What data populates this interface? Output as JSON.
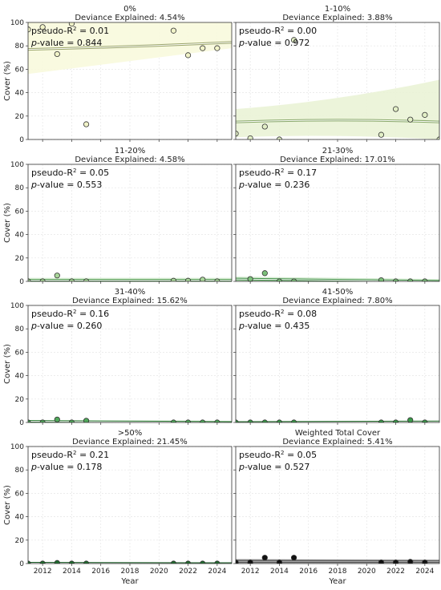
{
  "figure": {
    "ylabel": "Cover (%)",
    "xlabel": "Year"
  },
  "chart_data": [
    {
      "type": "scatter",
      "title": "0%",
      "subtitle": "Deviance Explained: 4.54%",
      "pseudo_r2_label": "pseudo-R",
      "pseudo_r2_sup": "2",
      "pseudo_r2_value": "= 0.01",
      "pvalue_label": "p",
      "pvalue_value": "-value = 0.844",
      "x": [
        2011,
        2012,
        2013,
        2014,
        2015,
        2021,
        2022,
        2023,
        2024
      ],
      "y": [
        94,
        96,
        73,
        99,
        13,
        93,
        72,
        78,
        78
      ],
      "fit_start": 77,
      "fit_end": 83,
      "band_low_start": 56,
      "band_low_end": 78,
      "band_high_start": 100,
      "band_high_end": 100,
      "point_fill": "#f1f3c8",
      "band_fill": "#f8f9dd",
      "fit_color": "#9aa46a",
      "xlim": [
        2011,
        2025
      ],
      "ylim": [
        0,
        100
      ],
      "yticks": [
        0,
        20,
        40,
        60,
        80,
        100
      ],
      "xticks": [
        2012,
        2014,
        2016,
        2018,
        2020,
        2022,
        2024
      ],
      "show_ylabels": true,
      "show_xlabels": false
    },
    {
      "type": "scatter",
      "title": "1-10%",
      "subtitle": "Deviance Explained: 3.88%",
      "pseudo_r2_label": "pseudo-R",
      "pseudo_r2_sup": "2",
      "pseudo_r2_value": "= 0.00",
      "pvalue_label": "p",
      "pvalue_value": "-value = 0.972",
      "x": [
        2011,
        2012,
        2013,
        2014,
        2015,
        2021,
        2022,
        2023,
        2024,
        2025
      ],
      "y": [
        5,
        1,
        11,
        0,
        85,
        4,
        26,
        17,
        21,
        0
      ],
      "fit_start": 15,
      "fit_end": 15,
      "band_low_start": 2,
      "band_low_end": 0,
      "band_high_start": 26,
      "band_high_end": 51,
      "point_fill": "#e2efc6",
      "band_fill": "#eaf3d6",
      "fit_color": "#89a86a",
      "xlim": [
        2011,
        2025
      ],
      "ylim": [
        0,
        100
      ],
      "yticks": [
        0,
        20,
        40,
        60,
        80,
        100
      ],
      "xticks": [
        2012,
        2014,
        2016,
        2018,
        2020,
        2022,
        2024
      ],
      "show_ylabels": true,
      "show_xlabels": false
    },
    {
      "type": "scatter",
      "title": "11-20%",
      "subtitle": "Deviance Explained: 4.58%",
      "pseudo_r2_label": "pseudo-R",
      "pseudo_r2_sup": "2",
      "pseudo_r2_value": "= 0.05",
      "pvalue_label": "p",
      "pvalue_value": "-value = 0.553",
      "x": [
        2011,
        2012,
        2013,
        2014,
        2015,
        2021,
        2022,
        2023,
        2024
      ],
      "y": [
        0,
        0,
        5,
        0,
        0,
        0.5,
        0.5,
        1.5,
        0
      ],
      "fit_start": 1,
      "fit_end": 1,
      "band_low_start": 0,
      "band_low_end": 0,
      "band_high_start": 3,
      "band_high_end": 3,
      "point_fill": "#a9d69a",
      "band_fill": "#d6ecd0",
      "fit_color": "#4f9a4f",
      "xlim": [
        2011,
        2025
      ],
      "ylim": [
        0,
        100
      ],
      "yticks": [
        0,
        20,
        40,
        60,
        80,
        100
      ],
      "xticks": [
        2012,
        2014,
        2016,
        2018,
        2020,
        2022,
        2024
      ],
      "show_ylabels": true,
      "show_xlabels": false
    },
    {
      "type": "scatter",
      "title": "21-30%",
      "subtitle": "Deviance Explained: 17.01%",
      "pseudo_r2_label": "pseudo-R",
      "pseudo_r2_sup": "2",
      "pseudo_r2_value": "= 0.17",
      "pvalue_label": "p",
      "pvalue_value": "-value = 0.236",
      "x": [
        2012,
        2013,
        2014,
        2015,
        2021,
        2022,
        2023,
        2024
      ],
      "y": [
        2,
        7,
        0,
        0,
        1,
        0,
        0,
        0
      ],
      "fit_start": 2,
      "fit_end": 0,
      "band_low_start": 0,
      "band_low_end": 0,
      "band_high_start": 4,
      "band_high_end": 2,
      "point_fill": "#7cc07a",
      "band_fill": "#cfe8cc",
      "fit_color": "#3f8f45",
      "xlim": [
        2011,
        2025
      ],
      "ylim": [
        0,
        100
      ],
      "yticks": [
        0,
        20,
        40,
        60,
        80,
        100
      ],
      "xticks": [
        2012,
        2014,
        2016,
        2018,
        2020,
        2022,
        2024
      ],
      "show_ylabels": true,
      "show_xlabels": false
    },
    {
      "type": "scatter",
      "title": "31-40%",
      "subtitle": "Deviance Explained: 15.62%",
      "pseudo_r2_label": "pseudo-R",
      "pseudo_r2_sup": "2",
      "pseudo_r2_value": "= 0.16",
      "pvalue_label": "p",
      "pvalue_value": "-value = 0.260",
      "x": [
        2011,
        2012,
        2013,
        2014,
        2015,
        2021,
        2022,
        2023,
        2024
      ],
      "y": [
        0,
        0,
        2.5,
        0,
        1.5,
        0,
        0,
        0,
        0
      ],
      "fit_start": 1,
      "fit_end": 0,
      "band_low_start": 0,
      "band_low_end": 0,
      "band_high_start": 2,
      "band_high_end": 1.5,
      "point_fill": "#4fa85a",
      "band_fill": "#c5e3c3",
      "fit_color": "#2e7d36",
      "xlim": [
        2011,
        2025
      ],
      "ylim": [
        0,
        100
      ],
      "yticks": [
        0,
        20,
        40,
        60,
        80,
        100
      ],
      "xticks": [
        2012,
        2014,
        2016,
        2018,
        2020,
        2022,
        2024
      ],
      "show_ylabels": true,
      "show_xlabels": false
    },
    {
      "type": "scatter",
      "title": "41-50%",
      "subtitle": "Deviance Explained: 7.80%",
      "pseudo_r2_label": "pseudo-R",
      "pseudo_r2_sup": "2",
      "pseudo_r2_value": "= 0.08",
      "pvalue_label": "p",
      "pvalue_value": "-value = 0.435",
      "x": [
        2011,
        2012,
        2013,
        2014,
        2015,
        2021,
        2022,
        2023,
        2024
      ],
      "y": [
        0,
        0,
        0,
        0,
        0,
        0,
        0,
        2,
        0
      ],
      "fit_start": 0,
      "fit_end": 0.5,
      "band_low_start": 0,
      "band_low_end": 0,
      "band_high_start": 1,
      "band_high_end": 1.5,
      "point_fill": "#3b9a4a",
      "band_fill": "#c2e0c0",
      "fit_color": "#26702e",
      "xlim": [
        2011,
        2025
      ],
      "ylim": [
        0,
        100
      ],
      "yticks": [
        0,
        20,
        40,
        60,
        80,
        100
      ],
      "xticks": [
        2012,
        2014,
        2016,
        2018,
        2020,
        2022,
        2024
      ],
      "show_ylabels": true,
      "show_xlabels": false
    },
    {
      "type": "scatter",
      "title": ">50%",
      "subtitle": "Deviance Explained: 21.45%",
      "pseudo_r2_label": "pseudo-R",
      "pseudo_r2_sup": "2",
      "pseudo_r2_value": "= 0.21",
      "pvalue_label": "p",
      "pvalue_value": "-value = 0.178",
      "x": [
        2011,
        2012,
        2013,
        2014,
        2015,
        2021,
        2022,
        2023,
        2024
      ],
      "y": [
        0,
        0,
        0.5,
        0,
        0,
        0,
        0,
        0,
        0
      ],
      "fit_start": 0.3,
      "fit_end": 0,
      "band_low_start": 0,
      "band_low_end": 0,
      "band_high_start": 1,
      "band_high_end": 0.5,
      "point_fill": "#1f6e2e",
      "band_fill": "#bcdcbc",
      "fit_color": "#175c24",
      "xlim": [
        2011,
        2025
      ],
      "ylim": [
        0,
        100
      ],
      "yticks": [
        0,
        20,
        40,
        60,
        80,
        100
      ],
      "xticks": [
        2012,
        2014,
        2016,
        2018,
        2020,
        2022,
        2024
      ],
      "show_ylabels": true,
      "show_xlabels": true
    },
    {
      "type": "scatter",
      "title": "Weighted Total Cover",
      "subtitle": "Deviance Explained: 5.41%",
      "pseudo_r2_label": "pseudo-R",
      "pseudo_r2_sup": "2",
      "pseudo_r2_value": "= 0.05",
      "pvalue_label": "p",
      "pvalue_value": "-value = 0.527",
      "x": [
        2011,
        2012,
        2013,
        2014,
        2015,
        2021,
        2022,
        2023,
        2024
      ],
      "y": [
        1,
        1,
        5,
        1,
        5,
        1,
        1,
        1.5,
        1
      ],
      "fit_start": 2,
      "fit_end": 2,
      "band_low_start": 0,
      "band_low_end": 0,
      "band_high_start": 4,
      "band_high_end": 3,
      "point_fill": "#111111",
      "band_fill": "#bdbdbd",
      "fit_color": "#111111",
      "xlim": [
        2011,
        2025
      ],
      "ylim": [
        0,
        100
      ],
      "yticks": [
        0,
        20,
        40,
        60,
        80,
        100
      ],
      "xticks": [
        2012,
        2014,
        2016,
        2018,
        2020,
        2022,
        2024
      ],
      "show_ylabels": true,
      "show_xlabels": true
    }
  ]
}
